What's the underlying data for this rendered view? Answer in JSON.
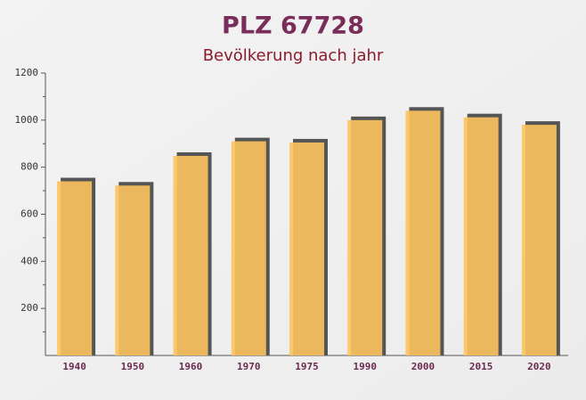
{
  "chart_data": {
    "type": "bar",
    "title": "PLZ 67728",
    "subtitle": "Bevölkerung nach jahr",
    "categories": [
      "1940",
      "1950",
      "1960",
      "1970",
      "1975",
      "1990",
      "2000",
      "2015",
      "2020"
    ],
    "values": [
      740,
      722,
      848,
      910,
      905,
      1000,
      1040,
      1012,
      980
    ],
    "color": "#fcc35e",
    "ylim": [
      0,
      1200
    ],
    "yticks": [
      200,
      400,
      600,
      800,
      1000,
      1200
    ],
    "minor_yticks": [
      100,
      300,
      500,
      700,
      900,
      1100
    ]
  }
}
